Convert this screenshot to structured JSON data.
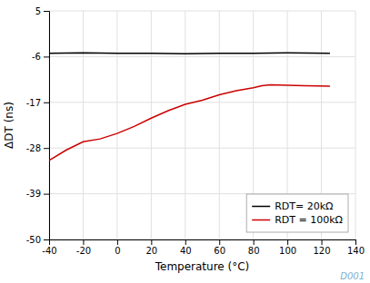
{
  "chart_data": {
    "type": "line",
    "x_label": "Temperature (°C)",
    "y_label": "ΔDT (ns)",
    "series": [
      {
        "name": "RDT= 20kΩ",
        "color": "#000000",
        "x": [
          -40,
          -20,
          0,
          20,
          40,
          60,
          80,
          100,
          125
        ],
        "values": [
          -5.2,
          -5.1,
          -5.2,
          -5.2,
          -5.3,
          -5.2,
          -5.2,
          -5.1,
          -5.2
        ]
      },
      {
        "name": "RDT = 100kΩ",
        "color": "#cc0000",
        "x": [
          -40,
          -30,
          -20,
          -10,
          0,
          10,
          20,
          30,
          40,
          50,
          60,
          70,
          80,
          85,
          90,
          100,
          110,
          125
        ],
        "values": [
          -31.0,
          -28.5,
          -26.5,
          -25.8,
          -24.5,
          -22.8,
          -20.8,
          -19.0,
          -17.5,
          -16.5,
          -15.2,
          -14.2,
          -13.5,
          -13.0,
          -12.8,
          -12.9,
          -13.0,
          -13.1
        ]
      }
    ],
    "xlim": [
      -40,
      140
    ],
    "ylim": [
      -50,
      5
    ],
    "xticks": [
      -40,
      -20,
      0,
      20,
      40,
      60,
      80,
      100,
      120,
      140
    ],
    "yticks": [
      5,
      -6,
      -17,
      -28,
      -39,
      -50
    ],
    "grid": true,
    "legend": "lower-right",
    "annotations": [
      {
        "text": "D001",
        "color": "#7bafd4"
      }
    ]
  }
}
